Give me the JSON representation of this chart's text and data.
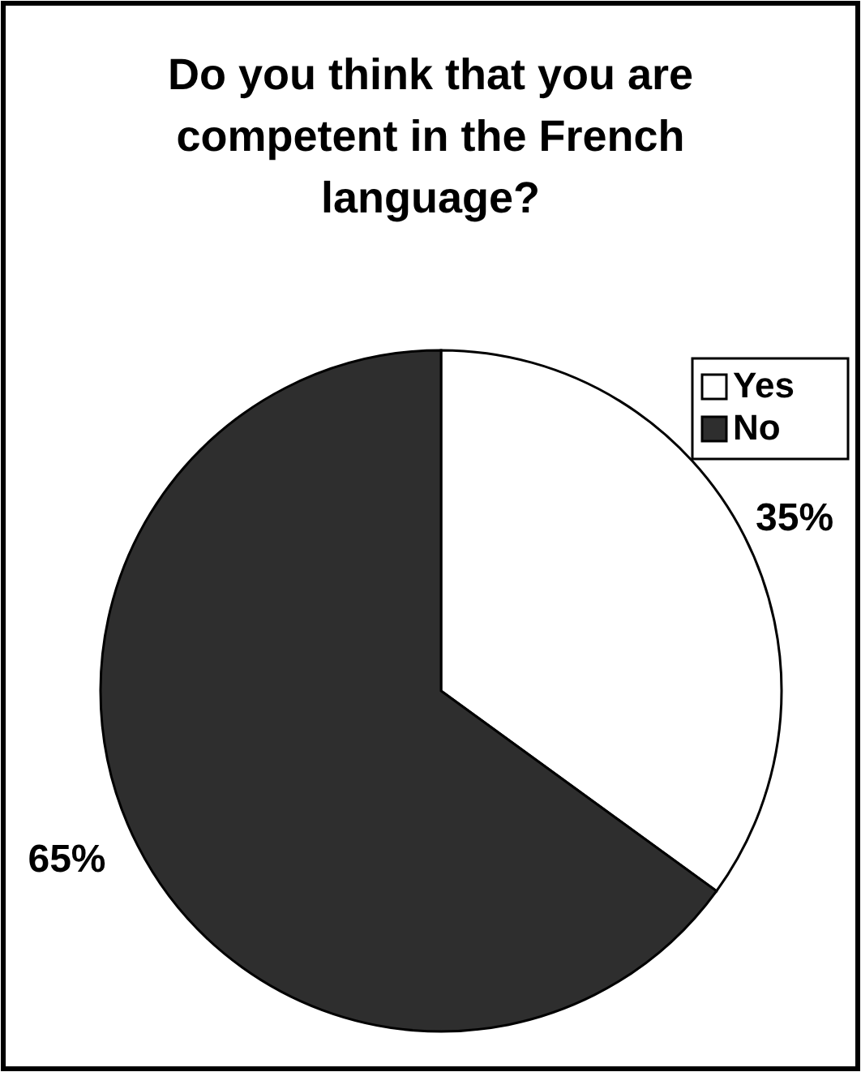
{
  "chart_data": {
    "type": "pie",
    "title": "Do you think that you are competent in the French language?",
    "categories": [
      "Yes",
      "No"
    ],
    "values": [
      35,
      65
    ],
    "colors": [
      "#ffffff",
      "#2e2e2e"
    ],
    "value_labels": [
      "35%",
      "65%"
    ],
    "legend": "top right"
  }
}
